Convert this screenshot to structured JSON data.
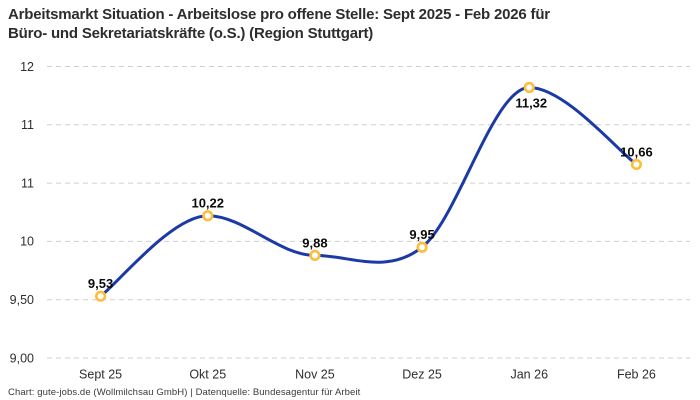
{
  "header": {
    "title_lines": [
      "Arbeitsmarkt Situation - Arbeitslose pro offene Stelle: Sept 2025 - Feb 2026 für",
      "Büro- und Sekretariatskräfte (o.S.) (Region Stuttgart)"
    ]
  },
  "footer": {
    "credit": "Chart: gute-jobs.de (Wollmilchsau GmbH) | Datenquelle: Bundesagentur für Arbeit"
  },
  "chart_data": {
    "type": "line",
    "title": "Arbeitsmarkt Situation - Arbeitslose pro offene Stelle: Sept 2025 - Feb 2026 für Büro- und Sekretariatskräfte (o.S.) (Region Stuttgart)",
    "categories": [
      "Sept 25",
      "Okt 25",
      "Nov 25",
      "Dez 25",
      "Jan 26",
      "Feb 26"
    ],
    "series": [
      {
        "name": "Arbeitslose pro offene Stelle",
        "values": [
          9.53,
          10.22,
          9.88,
          9.95,
          11.32,
          10.66
        ],
        "labels": [
          "9,53",
          "10,22",
          "9,88",
          "9,95",
          "11,32",
          "10,66"
        ]
      }
    ],
    "ylim": [
      9.0,
      11.5
    ],
    "y_ticks": [
      {
        "value": 9.0,
        "label": "9,00"
      },
      {
        "value": 9.5,
        "label": "9,50"
      },
      {
        "value": 10.0,
        "label": "10"
      },
      {
        "value": 10.5,
        "label": "11"
      },
      {
        "value": 11.0,
        "label": "11"
      },
      {
        "value": 11.5,
        "label": "12"
      }
    ],
    "grid": "horizontal-dashed",
    "legend": "none",
    "line_style": "smooth",
    "colors": {
      "line": "#1c3aa6",
      "marker_ring": "#fbbe3d",
      "marker_fill": "#ffffff",
      "grid": "#cfcfcf",
      "axis_text": "#2e2e2e",
      "data_label_text": "#0a0a0a",
      "title_text": "#2d2d2d",
      "footer_text": "#3a3a3a",
      "background": "#ffffff"
    }
  }
}
